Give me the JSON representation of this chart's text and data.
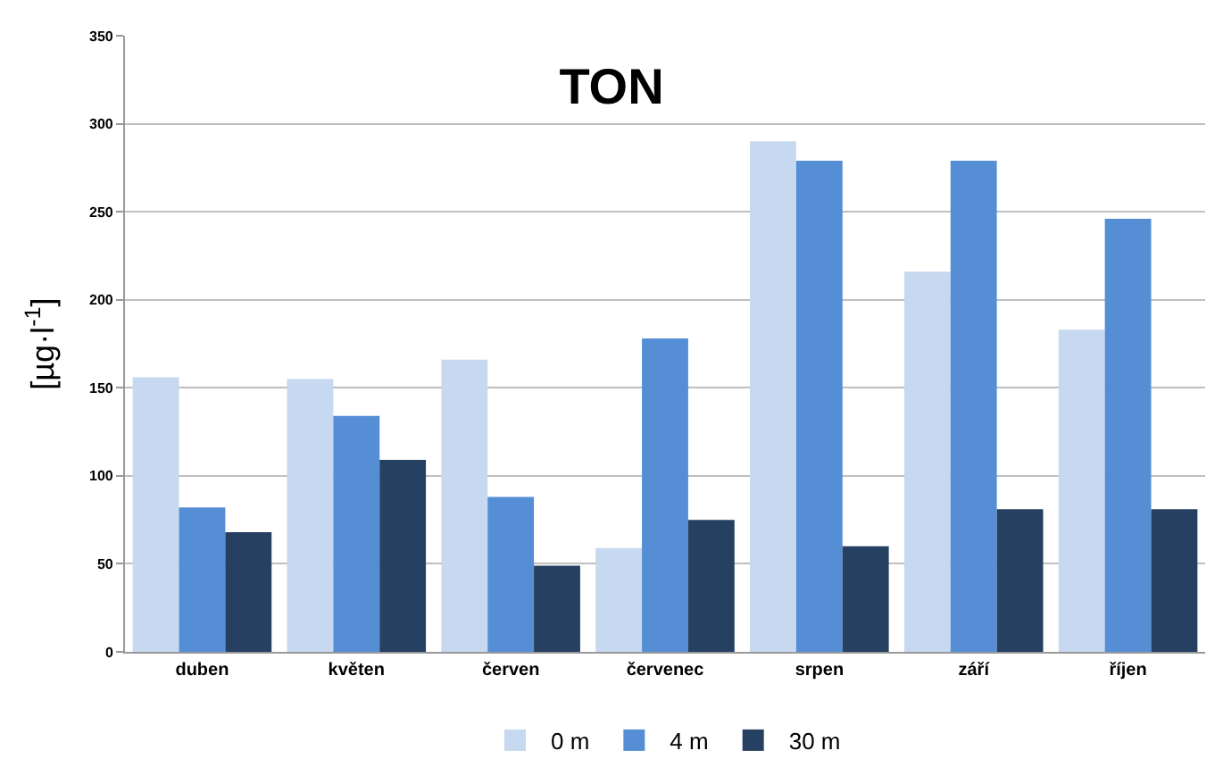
{
  "chart_data": {
    "type": "bar",
    "title": "TON",
    "ylabel": "[µg·l$^{-1}$]",
    "categories": [
      "duben",
      "květen",
      "červen",
      "červenec",
      "srpen",
      "září",
      "říjen"
    ],
    "series": [
      {
        "name": "0 m",
        "color": "#c6d9f0",
        "values": [
          156,
          155,
          166,
          59,
          290,
          216,
          183
        ]
      },
      {
        "name": "4 m",
        "color": "#558ed5",
        "values": [
          82,
          134,
          88,
          178,
          279,
          279,
          246
        ]
      },
      {
        "name": "30 m",
        "color": "#254061",
        "values": [
          68,
          109,
          49,
          75,
          60,
          81,
          81
        ]
      }
    ],
    "ylim": [
      0,
      350
    ],
    "yticks": [
      0,
      50,
      100,
      150,
      200,
      250,
      300,
      350
    ],
    "grid": "y",
    "legend": "bottom"
  }
}
